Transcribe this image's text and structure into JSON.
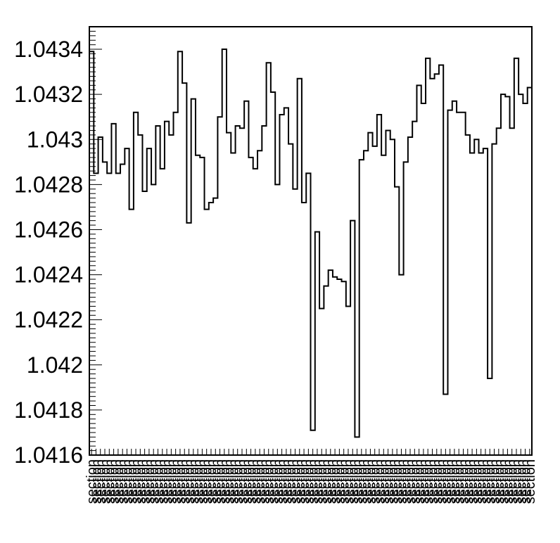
{
  "chart_data": {
    "type": "line",
    "title": "",
    "xlabel": "",
    "ylabel": "",
    "step": true,
    "grid": false,
    "ylim": [
      1.0416,
      1.0435
    ],
    "yticks": [
      "1.0416",
      "1.0418",
      "1.042",
      "1.0422",
      "1.0424",
      "1.0426",
      "1.0428",
      "1.043",
      "1.0432",
      "1.0434"
    ],
    "series": [
      {
        "values": [
          1.04339,
          1.04285,
          1.04301,
          1.0429,
          1.04285,
          1.04307,
          1.04285,
          1.04289,
          1.04296,
          1.04269,
          1.04312,
          1.04302,
          1.04277,
          1.04296,
          1.0428,
          1.04306,
          1.04287,
          1.04308,
          1.04302,
          1.04312,
          1.04339,
          1.04325,
          1.04263,
          1.04318,
          1.04293,
          1.04292,
          1.04269,
          1.04272,
          1.04274,
          1.0431,
          1.0434,
          1.04303,
          1.04294,
          1.04306,
          1.04305,
          1.04317,
          1.04292,
          1.04287,
          1.04295,
          1.04306,
          1.04334,
          1.04321,
          1.0428,
          1.04311,
          1.04314,
          1.04298,
          1.04278,
          1.04327,
          1.04272,
          1.04285,
          1.04171,
          1.04259,
          1.04225,
          1.04235,
          1.04242,
          1.04239,
          1.04238,
          1.04237,
          1.04226,
          1.04264,
          1.04168,
          1.04291,
          1.04295,
          1.04303,
          1.04297,
          1.04311,
          1.04293,
          1.04304,
          1.043,
          1.04279,
          1.0424,
          1.0429,
          1.04301,
          1.04308,
          1.04324,
          1.04316,
          1.04336,
          1.04327,
          1.04329,
          1.04333,
          1.04187,
          1.04313,
          1.04317,
          1.04312,
          1.04312,
          1.04302,
          1.04294,
          1.043,
          1.04294,
          1.04296,
          1.04194,
          1.04298,
          1.04305,
          1.0432,
          1.04319,
          1.04305,
          1.04336,
          1.0432,
          1.04316,
          1.04323
        ]
      }
    ],
    "x_label_text": "section"
  }
}
